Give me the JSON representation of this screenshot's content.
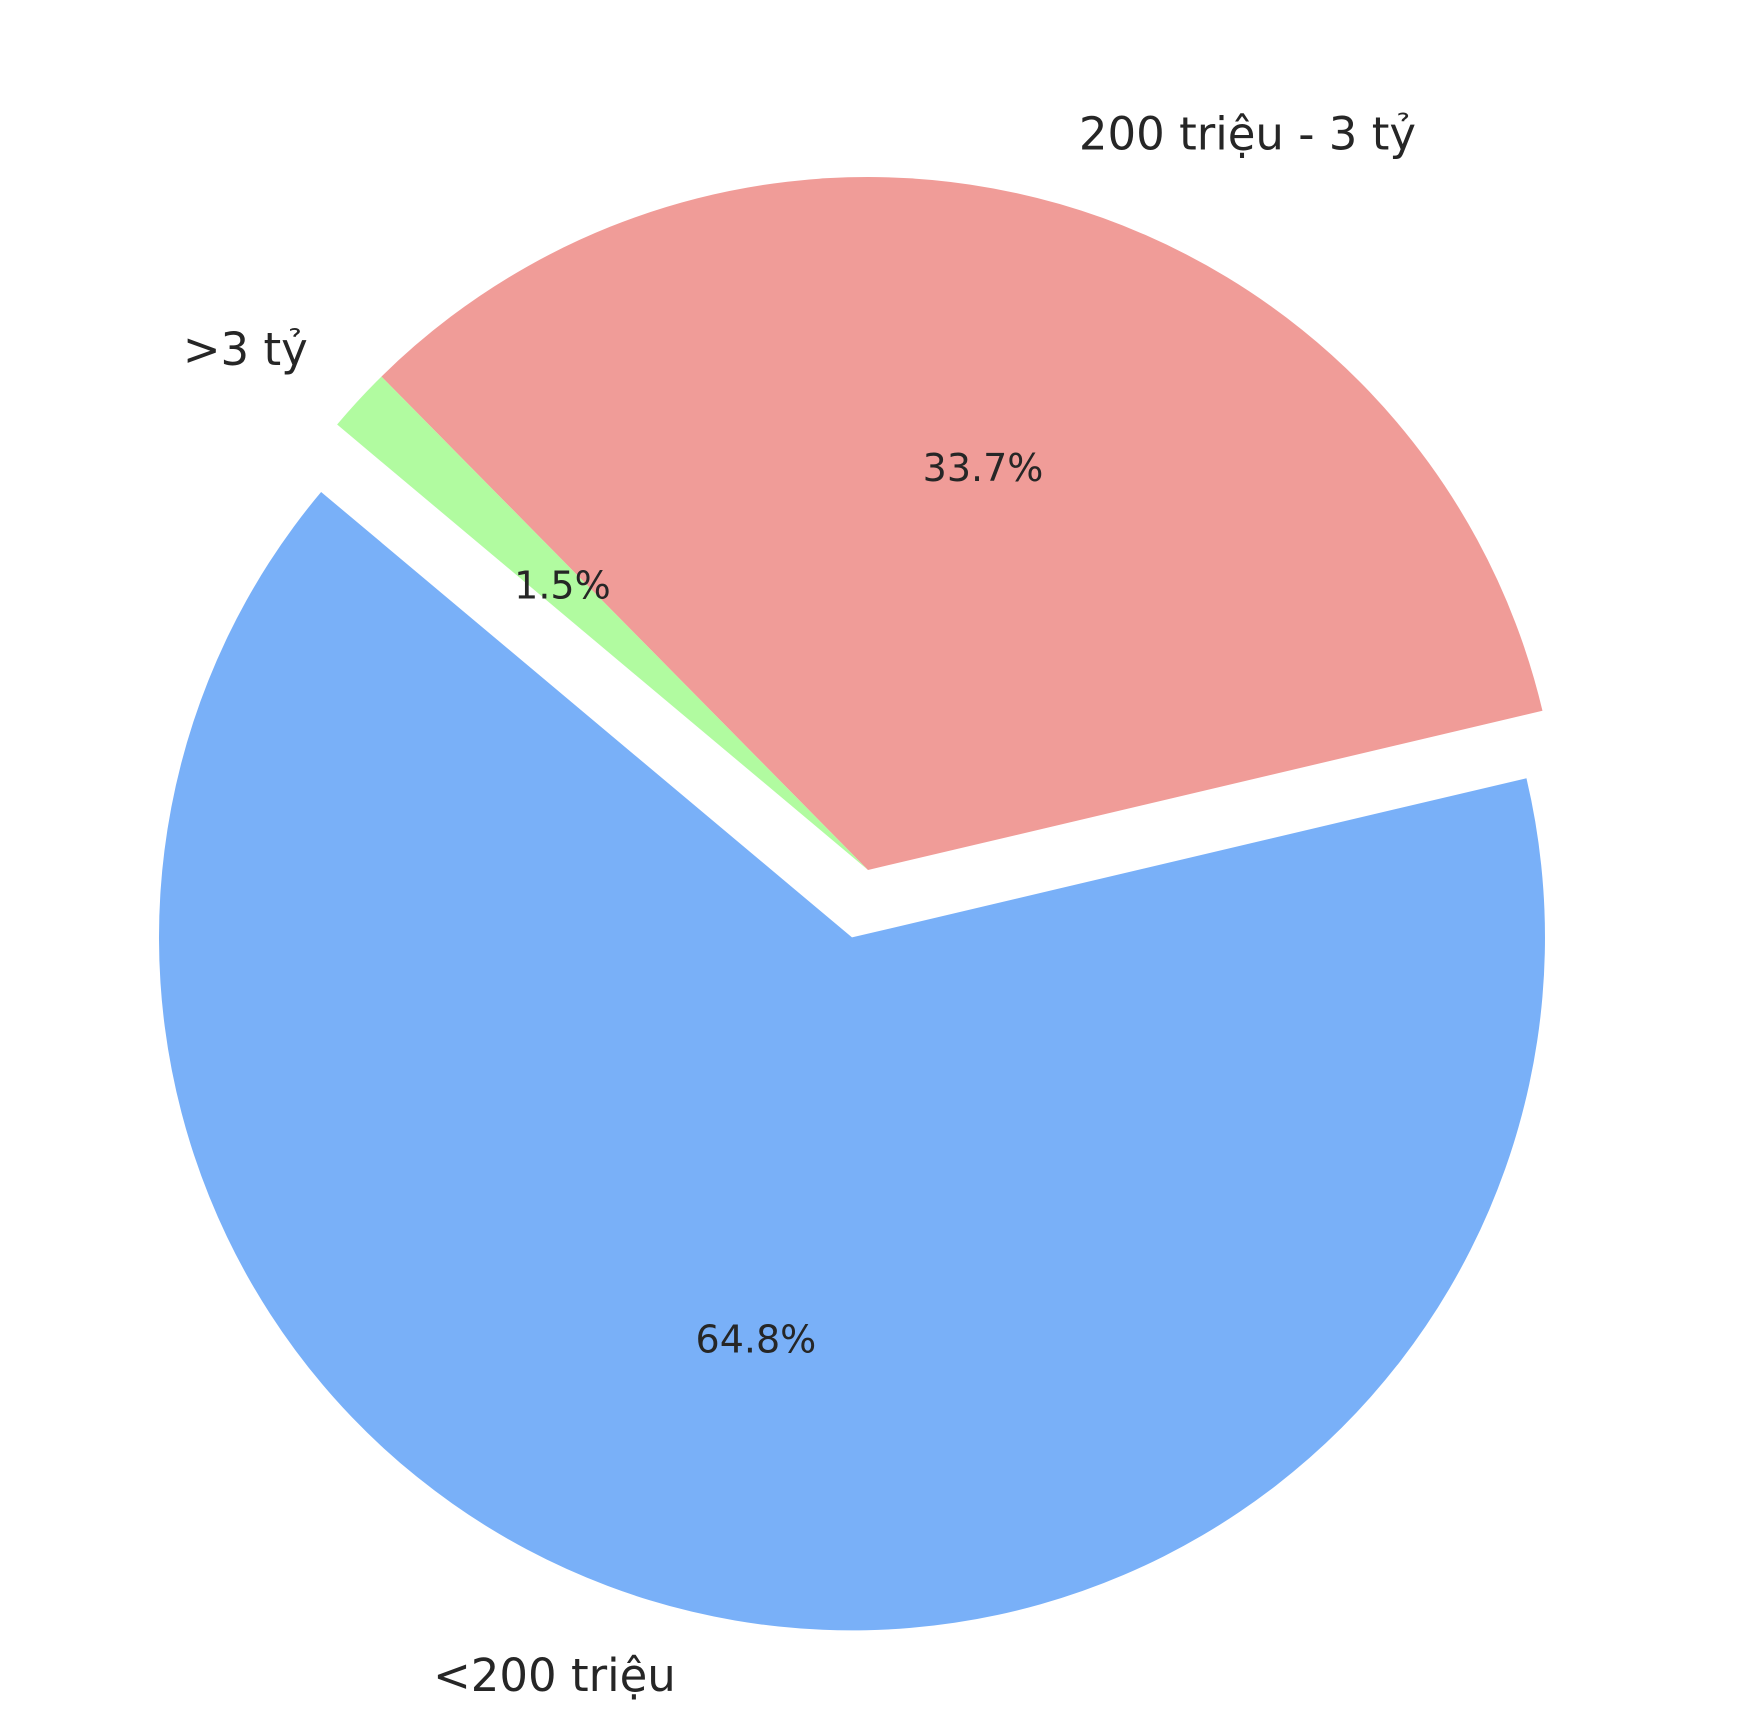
{
  "chart_data": {
    "type": "pie",
    "categories": [
      "<200 triệu",
      "200 triệu - 3 tỷ",
      ">3 tỷ"
    ],
    "values": [
      64.8,
      33.7,
      1.5
    ],
    "value_labels": [
      "64.8%",
      "33.7%",
      "1.5%"
    ],
    "colors": [
      "#79b0f8",
      "#f09c98",
      "#b1fba0"
    ]
  }
}
